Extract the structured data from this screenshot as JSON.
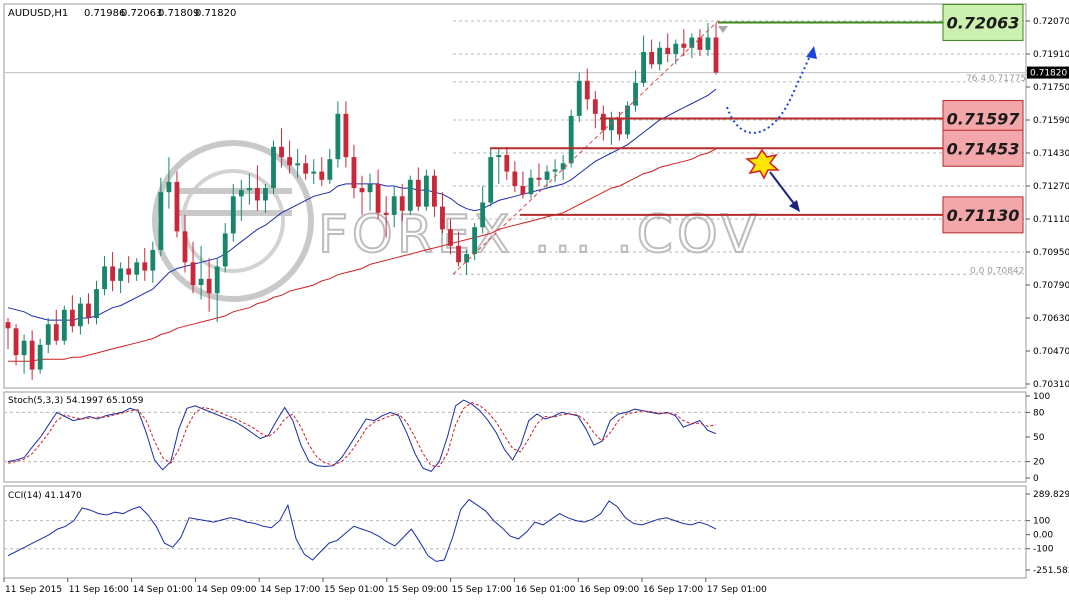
{
  "window": {
    "symbol_header": "AUDUSD,H1",
    "ohlc_values": [
      "0.71986",
      "0.72063",
      "0.71809",
      "0.71820"
    ]
  },
  "watermark": "FOREX ... .COV",
  "price_axis": {
    "ticks": [
      "0.72070",
      "0.71910",
      "0.71750",
      "0.71590",
      "0.71430",
      "0.71270",
      "0.71110",
      "0.70950",
      "0.70790",
      "0.70630",
      "0.70470",
      "0.70310"
    ],
    "current_price_label": "0.71820"
  },
  "fib_labels": [
    "76.4  0.71775",
    "0.0  0.70842"
  ],
  "level_boxes": [
    {
      "label": "0.72063",
      "fill": "#ccf0b0",
      "stroke": "#3a8a1a"
    },
    {
      "label": "0.71597",
      "fill": "#f4a7ab",
      "stroke": "#b52a2a"
    },
    {
      "label": "0.71453",
      "fill": "#f4a7ab",
      "stroke": "#b52a2a"
    },
    {
      "label": "0.71130",
      "fill": "#f4a7ab",
      "stroke": "#b52a2a"
    }
  ],
  "stoch": {
    "header": "Stoch(5,3,3) 54.1997 65.1059",
    "ticks": [
      "100",
      "80",
      "50",
      "20",
      "0"
    ]
  },
  "cci": {
    "header": "CCI(14) 41.1470",
    "ticks": [
      "289.8292",
      "100",
      "0.00",
      "-100",
      "-251.583"
    ]
  },
  "time_axis": [
    "11 Sep 2015",
    "11 Sep 16:00",
    "14 Sep 01:00",
    "14 Sep 09:00",
    "14 Sep 17:00",
    "15 Sep 01:00",
    "15 Sep 09:00",
    "15 Sep 17:00",
    "16 Sep 01:00",
    "16 Sep 09:00",
    "16 Sep 17:00",
    "17 Sep 01:00"
  ],
  "colors": {
    "bull_candle": "#19856a",
    "bear_candle": "#c8283a",
    "ma_fast": "#1a2cab",
    "ma_slow": "#d11f1f",
    "projection_arrow": "#1e46d8",
    "down_arrow": "#1a237e",
    "grid": "#b8b8b8"
  },
  "chart_data": [
    {
      "type": "candlestick",
      "title": "AUDUSD,H1",
      "ylim": [
        0.7031,
        0.7207
      ],
      "candles": [
        [
          0.7061,
          0.7063,
          0.7048,
          0.7058
        ],
        [
          0.7058,
          0.706,
          0.704,
          0.7045
        ],
        [
          0.7045,
          0.7055,
          0.7036,
          0.7052
        ],
        [
          0.7052,
          0.7057,
          0.7033,
          0.7038
        ],
        [
          0.7038,
          0.7053,
          0.7036,
          0.705
        ],
        [
          0.705,
          0.7063,
          0.7046,
          0.706
        ],
        [
          0.706,
          0.7067,
          0.705,
          0.7052
        ],
        [
          0.7052,
          0.7069,
          0.705,
          0.7067
        ],
        [
          0.7067,
          0.7074,
          0.7056,
          0.7059
        ],
        [
          0.7059,
          0.7073,
          0.7055,
          0.707
        ],
        [
          0.707,
          0.7075,
          0.706,
          0.7063
        ],
        [
          0.7063,
          0.7081,
          0.706,
          0.7077
        ],
        [
          0.7077,
          0.7093,
          0.7074,
          0.7088
        ],
        [
          0.7088,
          0.7095,
          0.7076,
          0.7081
        ],
        [
          0.7081,
          0.709,
          0.7075,
          0.7087
        ],
        [
          0.7087,
          0.7093,
          0.708,
          0.7084
        ],
        [
          0.7084,
          0.7092,
          0.7081,
          0.709
        ],
        [
          0.709,
          0.7097,
          0.7081,
          0.7086
        ],
        [
          0.7086,
          0.71,
          0.708,
          0.7096
        ],
        [
          0.7096,
          0.7131,
          0.7093,
          0.7124
        ],
        [
          0.7124,
          0.7141,
          0.7116,
          0.7129
        ],
        [
          0.7129,
          0.7134,
          0.7102,
          0.7105
        ],
        [
          0.7105,
          0.7113,
          0.7085,
          0.709
        ],
        [
          0.709,
          0.71,
          0.7075,
          0.7079
        ],
        [
          0.7079,
          0.7098,
          0.7072,
          0.7082
        ],
        [
          0.7082,
          0.7092,
          0.7066,
          0.7075
        ],
        [
          0.7075,
          0.7092,
          0.7061,
          0.7088
        ],
        [
          0.7088,
          0.7109,
          0.7085,
          0.7104
        ],
        [
          0.7104,
          0.7128,
          0.71,
          0.7122
        ],
        [
          0.7122,
          0.713,
          0.711,
          0.7125
        ],
        [
          0.7125,
          0.7133,
          0.7118,
          0.7126
        ],
        [
          0.7126,
          0.7137,
          0.7115,
          0.712
        ],
        [
          0.712,
          0.7128,
          0.7114,
          0.7126
        ],
        [
          0.7126,
          0.7149,
          0.7123,
          0.7146
        ],
        [
          0.7146,
          0.7155,
          0.7136,
          0.7141
        ],
        [
          0.7141,
          0.7149,
          0.7133,
          0.7137
        ],
        [
          0.7137,
          0.7145,
          0.7131,
          0.7138
        ],
        [
          0.7138,
          0.7142,
          0.713,
          0.7133
        ],
        [
          0.7133,
          0.714,
          0.7128,
          0.7134
        ],
        [
          0.7134,
          0.7141,
          0.7127,
          0.713
        ],
        [
          0.713,
          0.7145,
          0.7128,
          0.714
        ],
        [
          0.714,
          0.7168,
          0.7136,
          0.7162
        ],
        [
          0.7162,
          0.7168,
          0.7136,
          0.7141
        ],
        [
          0.7141,
          0.7147,
          0.7121,
          0.7126
        ],
        [
          0.7126,
          0.7132,
          0.7113,
          0.7124
        ],
        [
          0.7124,
          0.7133,
          0.7115,
          0.7128
        ],
        [
          0.7128,
          0.7135,
          0.7111,
          0.7114
        ],
        [
          0.7114,
          0.7122,
          0.7102,
          0.7113
        ],
        [
          0.7113,
          0.7127,
          0.7107,
          0.7122
        ],
        [
          0.7122,
          0.7128,
          0.711,
          0.7115
        ],
        [
          0.7115,
          0.7132,
          0.7113,
          0.713
        ],
        [
          0.713,
          0.7136,
          0.7115,
          0.7117
        ],
        [
          0.7117,
          0.7135,
          0.7115,
          0.7132
        ],
        [
          0.7132,
          0.7135,
          0.7112,
          0.7117
        ],
        [
          0.7117,
          0.7124,
          0.7104,
          0.7106
        ],
        [
          0.7106,
          0.7111,
          0.7094,
          0.7098
        ],
        [
          0.7098,
          0.7105,
          0.7088,
          0.709
        ],
        [
          0.709,
          0.7096,
          0.7084,
          0.7094
        ],
        [
          0.7094,
          0.7109,
          0.7091,
          0.7107
        ],
        [
          0.7107,
          0.7127,
          0.7104,
          0.7119
        ],
        [
          0.7119,
          0.7145,
          0.7117,
          0.7141
        ],
        [
          0.7141,
          0.7145,
          0.7128,
          0.7142
        ],
        [
          0.7142,
          0.7146,
          0.713,
          0.7134
        ],
        [
          0.7134,
          0.7139,
          0.7124,
          0.7127
        ],
        [
          0.7127,
          0.7134,
          0.7121,
          0.7123
        ],
        [
          0.7123,
          0.7135,
          0.7121,
          0.7131
        ],
        [
          0.7131,
          0.7138,
          0.7127,
          0.713
        ],
        [
          0.713,
          0.7137,
          0.7126,
          0.7134
        ],
        [
          0.7134,
          0.714,
          0.7129,
          0.7135
        ],
        [
          0.7135,
          0.7142,
          0.713,
          0.7138
        ],
        [
          0.7138,
          0.7164,
          0.7136,
          0.7161
        ],
        [
          0.7161,
          0.7182,
          0.7158,
          0.7178
        ],
        [
          0.7178,
          0.7184,
          0.7164,
          0.7169
        ],
        [
          0.7169,
          0.7173,
          0.7155,
          0.7162
        ],
        [
          0.7162,
          0.7166,
          0.7149,
          0.7154
        ],
        [
          0.7154,
          0.7163,
          0.7147,
          0.716
        ],
        [
          0.716,
          0.7163,
          0.7149,
          0.7152
        ],
        [
          0.7152,
          0.7168,
          0.715,
          0.7166
        ],
        [
          0.7166,
          0.7183,
          0.7163,
          0.7177
        ],
        [
          0.7177,
          0.72,
          0.7175,
          0.7192
        ],
        [
          0.7192,
          0.7198,
          0.7184,
          0.7186
        ],
        [
          0.7186,
          0.7197,
          0.7183,
          0.7194
        ],
        [
          0.7194,
          0.7201,
          0.7187,
          0.7191
        ],
        [
          0.7191,
          0.7198,
          0.7186,
          0.7196
        ],
        [
          0.7196,
          0.7203,
          0.719,
          0.7194
        ],
        [
          0.7194,
          0.7201,
          0.7189,
          0.7199
        ],
        [
          0.7199,
          0.7203,
          0.719,
          0.7193
        ],
        [
          0.7193,
          0.7206,
          0.719,
          0.7199
        ],
        [
          0.7199,
          0.7206,
          0.7181,
          0.7182
        ]
      ],
      "ma_fast": [
        0.7068,
        0.7067,
        0.7066,
        0.7064,
        0.7063,
        0.7062,
        0.7062,
        0.7062,
        0.7062,
        0.7063,
        0.7063,
        0.7064,
        0.7066,
        0.7068,
        0.7069,
        0.7071,
        0.7073,
        0.7075,
        0.7077,
        0.7081,
        0.7085,
        0.7087,
        0.7088,
        0.7089,
        0.709,
        0.7091,
        0.7092,
        0.7094,
        0.7097,
        0.71,
        0.7103,
        0.7106,
        0.7108,
        0.7111,
        0.7114,
        0.7116,
        0.7118,
        0.712,
        0.7122,
        0.7123,
        0.7124,
        0.7127,
        0.7128,
        0.7128,
        0.7128,
        0.7128,
        0.7128,
        0.7127,
        0.7127,
        0.7126,
        0.7126,
        0.7125,
        0.7125,
        0.7124,
        0.7123,
        0.7121,
        0.7118,
        0.7116,
        0.7115,
        0.7116,
        0.7118,
        0.712,
        0.7121,
        0.7122,
        0.7123,
        0.7124,
        0.7125,
        0.7126,
        0.7127,
        0.7128,
        0.713,
        0.7133,
        0.7136,
        0.7139,
        0.7141,
        0.7143,
        0.7145,
        0.7147,
        0.715,
        0.7153,
        0.7156,
        0.7159,
        0.7161,
        0.7163,
        0.7165,
        0.7167,
        0.7169,
        0.7171,
        0.7174
      ],
      "ma_slow": [
        0.7042,
        0.7042,
        0.7042,
        0.7042,
        0.7043,
        0.7043,
        0.7043,
        0.7043,
        0.7044,
        0.7044,
        0.7045,
        0.7046,
        0.7047,
        0.7048,
        0.7049,
        0.705,
        0.7051,
        0.7052,
        0.7053,
        0.7055,
        0.7056,
        0.7058,
        0.7059,
        0.706,
        0.7061,
        0.7062,
        0.7063,
        0.7064,
        0.7066,
        0.7067,
        0.7068,
        0.707,
        0.7071,
        0.7073,
        0.7074,
        0.7076,
        0.7077,
        0.7078,
        0.7079,
        0.7081,
        0.7082,
        0.7084,
        0.7085,
        0.7086,
        0.7087,
        0.7089,
        0.709,
        0.7091,
        0.7092,
        0.7093,
        0.7094,
        0.7095,
        0.7096,
        0.7097,
        0.7098,
        0.7099,
        0.71,
        0.7101,
        0.7102,
        0.7103,
        0.7104,
        0.7106,
        0.7107,
        0.7108,
        0.7109,
        0.711,
        0.7111,
        0.7112,
        0.7113,
        0.7114,
        0.7116,
        0.7118,
        0.712,
        0.7122,
        0.7124,
        0.7126,
        0.7127,
        0.7129,
        0.7131,
        0.7133,
        0.7134,
        0.7136,
        0.7137,
        0.7138,
        0.7139,
        0.714,
        0.7142,
        0.7143,
        0.7145
      ],
      "levels": [
        0.72063,
        0.71597,
        0.71453,
        0.7113
      ],
      "fib": {
        "level_76_4": 0.71775,
        "level_0_0": 0.70842,
        "high": 0.7207
      }
    },
    {
      "type": "line",
      "title": "Stoch(5,3,3) 54.1997 65.1059",
      "ylim": [
        0,
        100
      ],
      "series": [
        {
          "values": [
            20,
            22,
            25,
            38,
            50,
            65,
            80,
            75,
            70,
            72,
            75,
            72,
            76,
            78,
            80,
            85,
            82,
            55,
            22,
            10,
            20,
            60,
            85,
            88,
            84,
            80,
            76,
            72,
            68,
            62,
            55,
            48,
            52,
            70,
            86,
            70,
            40,
            20,
            15,
            14,
            15,
            25,
            40,
            56,
            72,
            70,
            76,
            80,
            76,
            55,
            30,
            12,
            8,
            20,
            50,
            88,
            95,
            90,
            82,
            70,
            55,
            35,
            22,
            40,
            70,
            78,
            72,
            75,
            80,
            78,
            76,
            60,
            40,
            45,
            70,
            78,
            80,
            84,
            82,
            80,
            78,
            80,
            76,
            62,
            66,
            70,
            58,
            54
          ]
        },
        {
          "values": [
            18,
            20,
            23,
            30,
            42,
            55,
            70,
            77,
            74,
            72,
            73,
            74,
            74,
            77,
            79,
            82,
            83,
            70,
            45,
            25,
            18,
            35,
            62,
            80,
            86,
            84,
            80,
            76,
            72,
            67,
            62,
            55,
            50,
            58,
            72,
            78,
            62,
            40,
            25,
            18,
            16,
            20,
            30,
            44,
            60,
            68,
            72,
            76,
            78,
            68,
            50,
            30,
            15,
            14,
            30,
            65,
            85,
            92,
            88,
            80,
            68,
            52,
            36,
            32,
            48,
            66,
            75,
            74,
            77,
            78,
            77,
            70,
            55,
            45,
            55,
            70,
            78,
            80,
            82,
            81,
            79,
            79,
            78,
            70,
            66,
            67,
            63,
            65
          ]
        }
      ]
    },
    {
      "type": "line",
      "title": "CCI(14) 41.1470",
      "ylim": [
        -251.583,
        289.8292
      ],
      "series": [
        {
          "values": [
            -150,
            -120,
            -90,
            -60,
            -30,
            0,
            40,
            60,
            100,
            190,
            175,
            150,
            140,
            160,
            150,
            180,
            200,
            140,
            60,
            -60,
            -90,
            -20,
            120,
            110,
            100,
            90,
            105,
            120,
            110,
            90,
            80,
            60,
            50,
            100,
            210,
            -30,
            -140,
            -180,
            -120,
            -60,
            -40,
            10,
            60,
            40,
            20,
            -10,
            -50,
            -80,
            -20,
            40,
            -50,
            -150,
            -190,
            -180,
            -20,
            180,
            250,
            210,
            170,
            100,
            50,
            -10,
            -30,
            20,
            90,
            70,
            110,
            150,
            120,
            100,
            90,
            110,
            150,
            240,
            200,
            120,
            80,
            70,
            90,
            110,
            120,
            100,
            80,
            70,
            90,
            70,
            40
          ]
        }
      ]
    }
  ]
}
